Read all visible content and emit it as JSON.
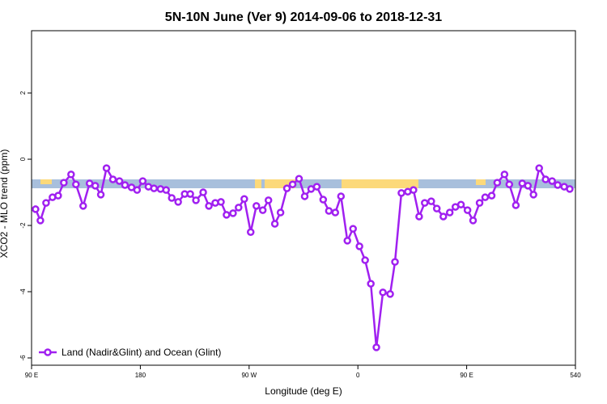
{
  "chart_data": {
    "type": "line",
    "title": "5N-10N June (Ver 9)   2014-09-06 to 2018-12-31",
    "x_label": "Longitude (deg E)",
    "y_label": "XCO2 - MLO trend (ppm)",
    "x": [
      93.3,
      97.3,
      102,
      107.3,
      112,
      116.7,
      122.7,
      126.7,
      132.7,
      138,
      142.7,
      147.3,
      152,
      157.3,
      162.7,
      167.3,
      172.7,
      177.3,
      182,
      186.7,
      191.3,
      196.7,
      201.3,
      206,
      211.3,
      216.7,
      221.3,
      226,
      232,
      236.7,
      242,
      246.7,
      251.3,
      256.7,
      261.3,
      266,
      271.3,
      276,
      281.3,
      286,
      291.3,
      296,
      301.3,
      306,
      311.3,
      316,
      321.3,
      326,
      331.3,
      336,
      341.3,
      346,
      351.3,
      356,
      361.3,
      366,
      370.7,
      375.3,
      380.7,
      386.7,
      390.7,
      396,
      401.3,
      406,
      410.7,
      415.3,
      420.7,
      425.3,
      430.7,
      436,
      440.7,
      445.3,
      450.7,
      455.3,
      460.7,
      465.3,
      470.7,
      475.3,
      481.3,
      485.3,
      490.7,
      496,
      500.7,
      505.3,
      510,
      515.3,
      520.7,
      525.3,
      530.7,
      535.3
    ],
    "series": [
      {
        "name": "Land (Nadir&Glint) and Ocean (Glint)",
        "color": "#a020f0",
        "values": [
          -1.51,
          -1.85,
          -1.32,
          -1.15,
          -1.1,
          -0.71,
          -0.46,
          -0.76,
          -1.41,
          -0.73,
          -0.8,
          -1.07,
          -0.27,
          -0.61,
          -0.66,
          -0.78,
          -0.85,
          -0.93,
          -0.66,
          -0.83,
          -0.88,
          -0.9,
          -0.93,
          -1.17,
          -1.29,
          -1.05,
          -1.05,
          -1.24,
          -1.0,
          -1.41,
          -1.32,
          -1.29,
          -1.68,
          -1.63,
          -1.46,
          -1.2,
          -2.2,
          -1.41,
          -1.54,
          -1.24,
          -1.95,
          -1.61,
          -0.88,
          -0.76,
          -0.59,
          -1.12,
          -0.9,
          -0.83,
          -1.22,
          -1.56,
          -1.61,
          -1.12,
          -2.46,
          -2.1,
          -2.63,
          -3.05,
          -3.76,
          -5.68,
          -4.02,
          -4.07,
          -3.1,
          -1.02,
          -0.98,
          -0.93,
          -1.73,
          -1.32,
          -1.27,
          -1.49,
          -1.73,
          -1.61,
          -1.44,
          -1.37,
          -1.54,
          -1.85,
          -1.32,
          -1.15,
          -1.1,
          -0.71,
          -0.46,
          -0.76,
          -1.39,
          -0.73,
          -0.8,
          -1.07,
          -0.27,
          -0.61,
          -0.66,
          -0.78,
          -0.83,
          -0.9
        ]
      }
    ],
    "xlim": [
      90,
      540
    ],
    "xticks": [
      {
        "value": 90,
        "label": "90 E"
      },
      180,
      {
        "value": 270,
        "label": "90 W"
      },
      {
        "value": 360,
        "label": "0"
      },
      {
        "value": 450,
        "label": "90 E"
      },
      540
    ],
    "ylim": [
      -6.22,
      3.88
    ],
    "yticks": [
      -6,
      -4,
      -2,
      0,
      2
    ],
    "legend": "bottom-left"
  }
}
